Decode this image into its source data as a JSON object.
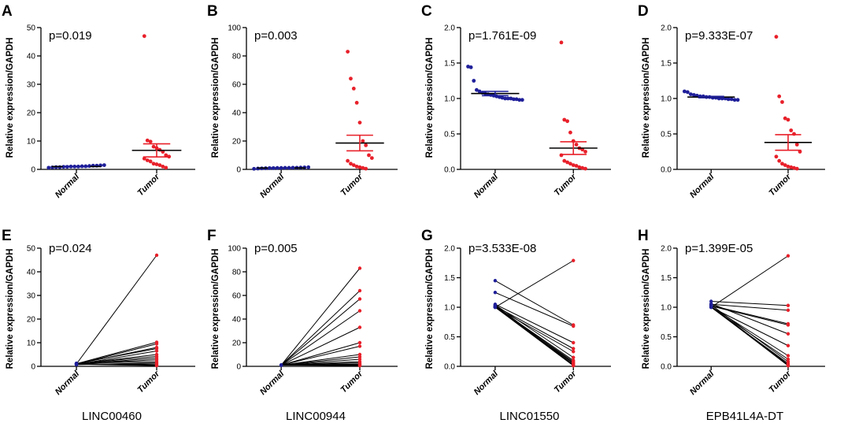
{
  "figure_title": "",
  "colors": {
    "normal": "#1f1f9a",
    "tumor": "#e8202a",
    "line": "#000000"
  },
  "chart_data": [
    {
      "panel": "A",
      "type": "scatter",
      "p_text": "p=0.019",
      "ylabel": "Relative expression/GAPDH",
      "categories": [
        "Normal",
        "Tumor"
      ],
      "ylim": [
        0,
        50
      ],
      "yticks": [
        0,
        10,
        20,
        30,
        40,
        50
      ],
      "normal_values": [
        0.6,
        0.7,
        0.8,
        0.8,
        0.9,
        0.9,
        1.0,
        1.0,
        1.0,
        1.1,
        1.1,
        1.2,
        1.3,
        1.3,
        1.4,
        1.5
      ],
      "tumor_values": [
        47,
        10.2,
        9.8,
        8.0,
        7.5,
        6.9,
        6.2,
        5.0,
        4.5,
        3.8,
        3.2,
        2.8,
        2.0,
        1.8,
        1.5,
        1.0,
        0.6
      ],
      "normal_mean": 1.0,
      "normal_sem": 0.1,
      "tumor_mean": 6.7,
      "tumor_sem": 2.3
    },
    {
      "panel": "B",
      "type": "scatter",
      "p_text": "p=0.003",
      "ylabel": "Relative expression/GAPDH",
      "categories": [
        "Normal",
        "Tumor"
      ],
      "ylim": [
        0,
        100
      ],
      "yticks": [
        0,
        20,
        40,
        60,
        80,
        100
      ],
      "normal_values": [
        0.4,
        0.6,
        0.7,
        0.8,
        0.9,
        0.9,
        1.0,
        1.0,
        1.1,
        1.1,
        1.2,
        1.2,
        1.3,
        1.4,
        1.5
      ],
      "tumor_values": [
        83,
        64,
        57,
        47,
        33,
        20,
        17,
        10,
        8,
        6,
        4,
        3,
        2,
        1.5,
        1,
        0.5
      ],
      "normal_mean": 1.0,
      "normal_sem": 0.1,
      "tumor_mean": 18.6,
      "tumor_sem": 5.5
    },
    {
      "panel": "C",
      "type": "scatter",
      "p_text": "p=1.761E-09",
      "ylabel": "Relative expression/GAPDH",
      "categories": [
        "Normal",
        "Tumor"
      ],
      "ylim": [
        0,
        2.0
      ],
      "yticks": [
        0.0,
        0.5,
        1.0,
        1.5,
        2.0
      ],
      "normal_values": [
        1.45,
        1.44,
        1.25,
        1.12,
        1.1,
        1.08,
        1.07,
        1.06,
        1.05,
        1.04,
        1.03,
        1.02,
        1.01,
        1.0,
        1.0,
        1.0,
        0.99,
        0.99,
        0.98,
        0.98
      ],
      "tumor_values": [
        1.79,
        0.7,
        0.68,
        0.52,
        0.4,
        0.35,
        0.3,
        0.28,
        0.25,
        0.2,
        0.12,
        0.1,
        0.08,
        0.06,
        0.05,
        0.03,
        0.02,
        0.01
      ],
      "normal_mean": 1.07,
      "normal_sem": 0.03,
      "tumor_mean": 0.3,
      "tumor_sem": 0.09
    },
    {
      "panel": "D",
      "type": "scatter",
      "p_text": "p=9.333E-07",
      "ylabel": "Relative expression/GAPDH",
      "categories": [
        "Normal",
        "Tumor"
      ],
      "ylim": [
        0,
        2.0
      ],
      "yticks": [
        0.0,
        0.5,
        1.0,
        1.5,
        2.0
      ],
      "normal_values": [
        1.1,
        1.09,
        1.06,
        1.05,
        1.04,
        1.03,
        1.03,
        1.02,
        1.02,
        1.01,
        1.01,
        1.0,
        1.0,
        1.0,
        0.99,
        0.99,
        0.98,
        0.98
      ],
      "tumor_values": [
        1.87,
        1.03,
        0.95,
        0.72,
        0.7,
        0.55,
        0.5,
        0.35,
        0.25,
        0.18,
        0.12,
        0.08,
        0.06,
        0.04,
        0.03,
        0.02,
        0.01
      ],
      "normal_mean": 1.02,
      "normal_sem": 0.01,
      "tumor_mean": 0.38,
      "tumor_sem": 0.11
    },
    {
      "panel": "E",
      "type": "line",
      "p_text": "p=0.024",
      "ylabel": "Relative expression/GAPDH",
      "categories": [
        "Normal",
        "Tumor"
      ],
      "ylim": [
        0,
        50
      ],
      "yticks": [
        0,
        10,
        20,
        30,
        40,
        50
      ],
      "pairs": [
        [
          1.0,
          47
        ],
        [
          1.1,
          10.2
        ],
        [
          0.9,
          9.5
        ],
        [
          1.0,
          8.0
        ],
        [
          1.2,
          7.5
        ],
        [
          0.8,
          6.5
        ],
        [
          1.0,
          5.0
        ],
        [
          1.1,
          4.2
        ],
        [
          0.9,
          3.5
        ],
        [
          1.0,
          2.8
        ],
        [
          1.3,
          2.0
        ],
        [
          0.7,
          1.5
        ],
        [
          1.0,
          1.0
        ],
        [
          1.1,
          0.6
        ],
        [
          0.9,
          0.3
        ]
      ],
      "gene": "LINC00460"
    },
    {
      "panel": "F",
      "type": "line",
      "p_text": "p=0.005",
      "ylabel": "Relative expression/GAPDH",
      "categories": [
        "Normal",
        "Tumor"
      ],
      "ylim": [
        0,
        100
      ],
      "yticks": [
        0,
        20,
        40,
        60,
        80,
        100
      ],
      "pairs": [
        [
          1.0,
          83
        ],
        [
          1.0,
          64
        ],
        [
          1.0,
          57
        ],
        [
          1.0,
          47
        ],
        [
          1.0,
          33
        ],
        [
          1.0,
          20
        ],
        [
          1.0,
          17
        ],
        [
          1.0,
          10
        ],
        [
          1.0,
          8
        ],
        [
          1.0,
          6
        ],
        [
          1.0,
          4
        ],
        [
          1.0,
          3
        ],
        [
          1.0,
          2
        ],
        [
          1.0,
          1.5
        ],
        [
          1.0,
          1
        ],
        [
          1.0,
          0.5
        ]
      ],
      "gene": "LINC00944"
    },
    {
      "panel": "G",
      "type": "line",
      "p_text": "p=3.533E-08",
      "ylabel": "Relative expression/GAPDH",
      "categories": [
        "Normal",
        "Tumor"
      ],
      "ylim": [
        0,
        2.0
      ],
      "yticks": [
        0.0,
        0.5,
        1.0,
        1.5,
        2.0
      ],
      "pairs": [
        [
          1.0,
          1.79
        ],
        [
          1.45,
          0.7
        ],
        [
          1.25,
          0.68
        ],
        [
          1.05,
          0.4
        ],
        [
          1.02,
          0.3
        ],
        [
          1.0,
          0.25
        ],
        [
          1.04,
          0.15
        ],
        [
          1.01,
          0.1
        ],
        [
          1.0,
          0.08
        ],
        [
          1.03,
          0.06
        ],
        [
          1.0,
          0.05
        ],
        [
          1.02,
          0.03
        ],
        [
          1.01,
          0.02
        ],
        [
          1.0,
          0.01
        ]
      ],
      "gene": "LINC01550"
    },
    {
      "panel": "H",
      "type": "line",
      "p_text": "p=1.399E-05",
      "ylabel": "Relative expression/GAPDH",
      "categories": [
        "Normal",
        "Tumor"
      ],
      "ylim": [
        0,
        2.0
      ],
      "yticks": [
        0.0,
        0.5,
        1.0,
        1.5,
        2.0
      ],
      "pairs": [
        [
          1.0,
          1.87
        ],
        [
          1.1,
          1.03
        ],
        [
          1.05,
          0.95
        ],
        [
          1.03,
          0.72
        ],
        [
          1.02,
          0.7
        ],
        [
          1.06,
          0.55
        ],
        [
          1.0,
          0.35
        ],
        [
          1.01,
          0.18
        ],
        [
          1.0,
          0.12
        ],
        [
          1.04,
          0.08
        ],
        [
          1.0,
          0.05
        ],
        [
          1.02,
          0.03
        ],
        [
          1.0,
          0.02
        ],
        [
          1.01,
          0.01
        ]
      ],
      "gene": "EPB41L4A-DT"
    }
  ]
}
